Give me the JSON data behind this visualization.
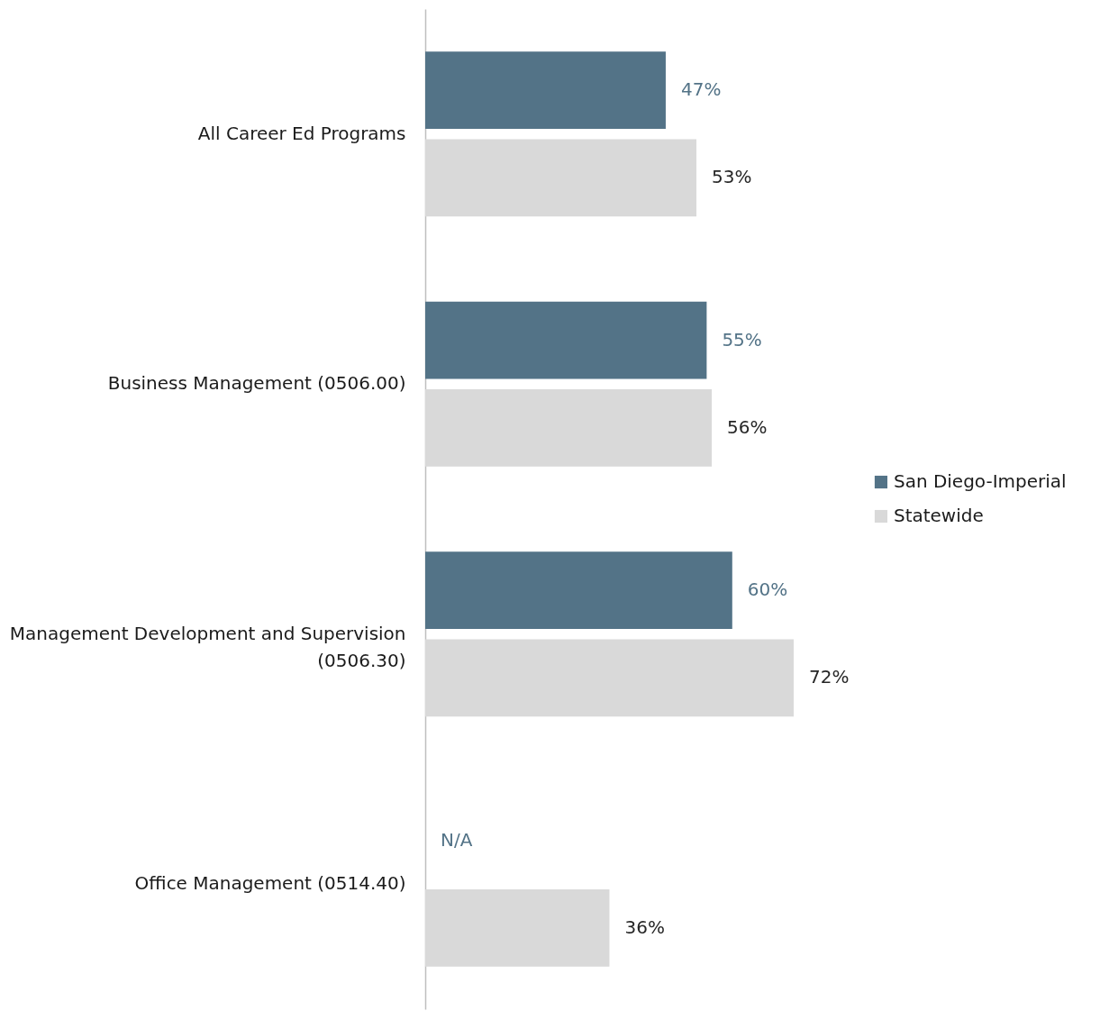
{
  "chart_data": {
    "type": "bar",
    "orientation": "horizontal",
    "categories": [
      "All Career Ed Programs",
      "Business Management (0506.00)",
      "Management Development and Supervision (0506.30)",
      "Office Management (0514.40)"
    ],
    "series": [
      {
        "name": "San Diego-Imperial",
        "color": "#537387",
        "values": [
          47,
          55,
          60,
          null
        ],
        "value_labels": [
          "47%",
          "55%",
          "60%",
          "N/A"
        ]
      },
      {
        "name": "Statewide",
        "color": "#d9d9d9",
        "values": [
          53,
          56,
          72,
          36
        ],
        "value_labels": [
          "53%",
          "56%",
          "72%",
          "36%"
        ]
      }
    ],
    "legend": "right"
  }
}
